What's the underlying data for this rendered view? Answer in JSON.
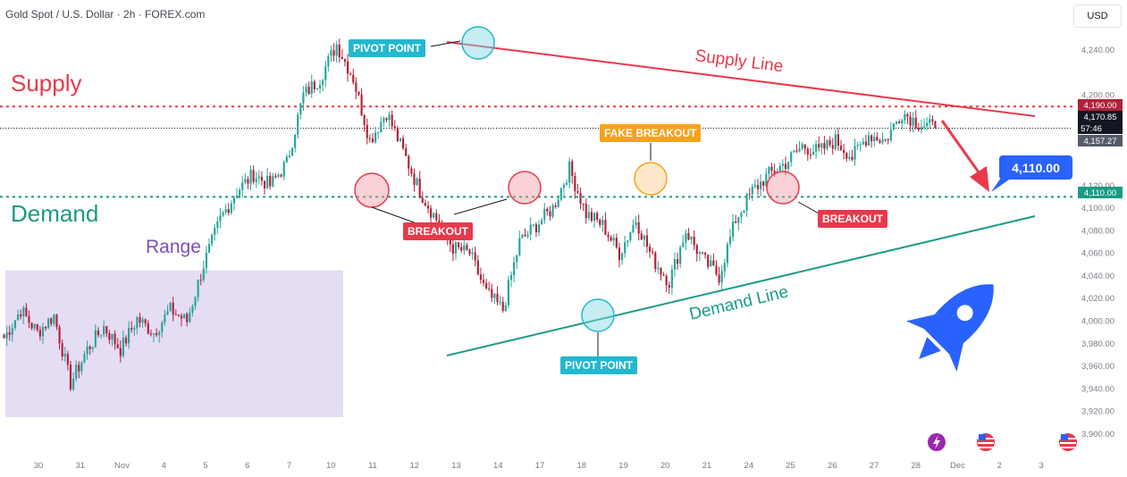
{
  "header": {
    "symbol_title": "Gold Spot / U.S. Dollar · 2h · FOREX.com",
    "currency": "USD"
  },
  "annotations": {
    "supply": "Supply",
    "demand": "Demand",
    "range": "Range",
    "supply_line": "Supply Line",
    "demand_line": "Demand Line",
    "pivot_top": "PIVOT POINT",
    "pivot_bottom": "PIVOT POINT",
    "breakout_left": "BREAKOUT",
    "breakout_right": "BREAKOUT",
    "fake_breakout": "FAKE BREAKOUT",
    "target_callout": "4,110.00"
  },
  "price_labels": {
    "supply_level": "4,190.00",
    "last_price": "4,170.85",
    "countdown": "57:46",
    "low_mark": "4,157.27",
    "demand_level": "4,110.00"
  },
  "colors": {
    "bullish": "#26a69a",
    "bearish": "#b2213a",
    "supply": "#e8394b",
    "demand": "#1a9b86",
    "range_fill": "#e2d9f3",
    "callout": "#2962ff"
  },
  "chart_data": {
    "type": "candlestick",
    "title": "Gold Spot / U.S. Dollar · 2h · FOREX.com",
    "ylim": [
      3895,
      4265
    ],
    "y_ticks": [
      "4,240.00",
      "4,200.00",
      "4,120.00",
      "4,100.00",
      "4,080.00",
      "4,060.00",
      "4,040.00",
      "4,020.00",
      "4,000.00",
      "3,980.00",
      "3,960.00",
      "3,940.00",
      "3,920.00",
      "3,900.00"
    ],
    "y_tick_values": [
      4240,
      4200,
      4120,
      4100,
      4080,
      4060,
      4040,
      4020,
      4000,
      3980,
      3960,
      3940,
      3920,
      3900
    ],
    "x_ticks": [
      "30",
      "31",
      "Nov",
      "4",
      "5",
      "6",
      "7",
      "10",
      "11",
      "12",
      "13",
      "14",
      "17",
      "18",
      "19",
      "20",
      "21",
      "24",
      "25",
      "26",
      "27",
      "28",
      "Dec",
      "2",
      "3"
    ],
    "levels": {
      "supply": 4190,
      "demand": 4110,
      "last": 4170.85
    },
    "swing_closes": [
      3985,
      4010,
      3990,
      4005,
      3945,
      3975,
      3995,
      3975,
      4002,
      3990,
      4010,
      4000,
      4050,
      4090,
      4115,
      4130,
      4120,
      4140,
      4200,
      4215,
      4245,
      4215,
      4160,
      4185,
      4150,
      4115,
      4090,
      4065,
      4060,
      4025,
      4010,
      4070,
      4085,
      4100,
      4135,
      4095,
      4085,
      4060,
      4090,
      4055,
      4035,
      4080,
      4055,
      4040,
      4090,
      4115,
      4130,
      4140,
      4155,
      4150,
      4160,
      4145,
      4165,
      4160,
      4185,
      4175,
      4171
    ],
    "range_box": {
      "price_low": 3915,
      "price_high": 4045
    }
  }
}
